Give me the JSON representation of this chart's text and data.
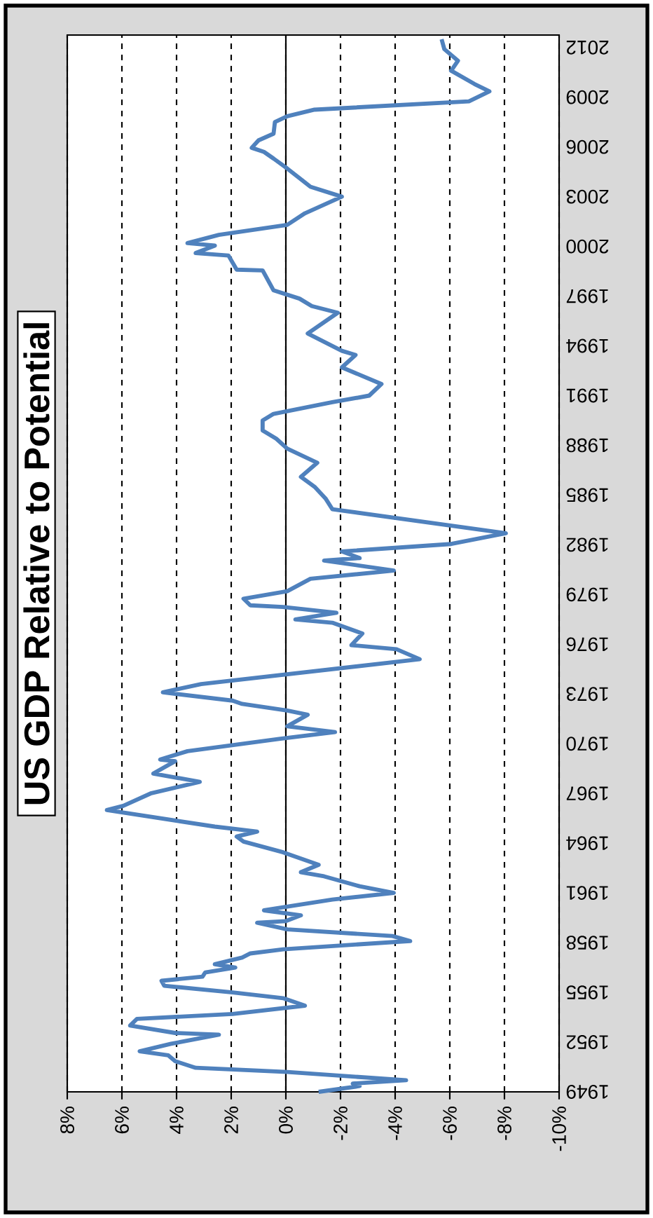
{
  "chart_data": {
    "type": "line",
    "title": "US GDP Relative to Potential",
    "color": "#4f81bd",
    "grid": "x",
    "xlim": [
      8,
      -10
    ],
    "ylim": [
      1949,
      2012.75
    ],
    "xticks": [
      {
        "value": 8,
        "label": "8%"
      },
      {
        "value": 6,
        "label": "6%"
      },
      {
        "value": 4,
        "label": "4%"
      },
      {
        "value": 2,
        "label": "2%"
      },
      {
        "value": 0,
        "label": "0%"
      },
      {
        "value": -2,
        "label": "-2%"
      },
      {
        "value": -4,
        "label": "-4%"
      },
      {
        "value": -6,
        "label": "-6%"
      },
      {
        "value": -8,
        "label": "-8%"
      },
      {
        "value": -10,
        "label": "-10%"
      }
    ],
    "yticks": [
      1949,
      1952,
      1955,
      1958,
      1961,
      1964,
      1967,
      1970,
      1973,
      1976,
      1979,
      1982,
      1985,
      1988,
      1991,
      1994,
      1997,
      2000,
      2003,
      2006,
      2009,
      2012
    ],
    "x": [
      -1.2,
      -2.7,
      -2.45,
      -4.4,
      -0.05,
      3.3,
      4.05,
      4.3,
      5.35,
      4.2,
      2.45,
      4.05,
      5.7,
      5.45,
      1.95,
      -0.7,
      0.1,
      1.95,
      4.45,
      4.55,
      3.05,
      2.95,
      1.85,
      2.6,
      1.6,
      1.3,
      0.1,
      -4.55,
      -3.9,
      -0.05,
      1.05,
      0,
      -0.55,
      0.8,
      -1.7,
      -3.95,
      -2.7,
      -1.4,
      -0.55,
      -1.2,
      0.1,
      1.55,
      1.8,
      1.05,
      2.6,
      6.55,
      5.95,
      4.95,
      3.15,
      4.85,
      4.05,
      4.6,
      3.6,
      0.2,
      -1.8,
      -0.05,
      -0.8,
      -0.05,
      1.6,
      1.95,
      4.5,
      3.1,
      -4.9,
      -4.05,
      -2.4,
      -2.8,
      -1.7,
      -0.35,
      -1.85,
      0.1,
      1.3,
      1.55,
      -0.05,
      -0.9,
      -3.95,
      -1.4,
      -2.7,
      -2.05,
      -6.05,
      -8.05,
      -1.7,
      -1.45,
      -1.05,
      -0.55,
      -1.15,
      -0.05,
      0.35,
      0.85,
      0.85,
      0.45,
      -1.7,
      -3.05,
      -3.5,
      -2.05,
      -2.55,
      -2.05,
      -0.8,
      -1.9,
      -0.95,
      -0.5,
      0.45,
      0.85,
      1.8,
      2.1,
      3.3,
      2.6,
      3.6,
      2.45,
      -0.05,
      -0.7,
      -2.05,
      -0.9,
      -0.05,
      0.45,
      0.8,
      1.25,
      1.0,
      0.45,
      0.4,
      -0.05,
      -1.05,
      -6.7,
      -7.45,
      -6.9,
      -6.05,
      -6.3,
      -5.8,
      -5.7
    ],
    "values": [
      1949.0,
      1949.35,
      1949.5,
      1949.7,
      1950.2,
      1950.45,
      1950.85,
      1951.2,
      1951.45,
      1951.9,
      1952.45,
      1952.55,
      1953.0,
      1953.4,
      1953.7,
      1954.2,
      1954.65,
      1955.0,
      1955.4,
      1955.7,
      1955.95,
      1956.2,
      1956.5,
      1956.7,
      1957.1,
      1957.35,
      1957.6,
      1958.1,
      1958.4,
      1958.8,
      1959.2,
      1959.3,
      1959.65,
      1959.95,
      1960.6,
      1961.0,
      1961.4,
      1962.0,
      1962.25,
      1962.7,
      1963.45,
      1964.1,
      1964.4,
      1964.7,
      1965.0,
      1966.0,
      1966.25,
      1967.0,
      1967.7,
      1968.2,
      1968.95,
      1969.05,
      1969.55,
      1970.3,
      1970.7,
      1971.05,
      1971.75,
      1972.0,
      1972.4,
      1972.6,
      1973.1,
      1973.6,
      1975.1,
      1975.7,
      1975.95,
      1976.65,
      1977.3,
      1977.5,
      1977.9,
      1978.25,
      1978.35,
      1978.75,
      1979.2,
      1979.95,
      1980.45,
      1981.05,
      1981.2,
      1981.6,
      1982.05,
      1982.7,
      1984.15,
      1984.8,
      1985.5,
      1986.1,
      1986.95,
      1987.8,
      1988.4,
      1988.9,
      1989.5,
      1989.9,
      1990.6,
      1991.0,
      1991.7,
      1992.7,
      1993.45,
      1993.7,
      1994.75,
      1996.0,
      1996.4,
      1996.85,
      1997.35,
      1998.55,
      1998.6,
      1999.45,
      1999.6,
      2000.05,
      2000.2,
      2000.7,
      2001.3,
      2002.0,
      2003.0,
      2003.6,
      2004.7,
      2005.3,
      2005.7,
      2005.95,
      2006.4,
      2006.8,
      2007.5,
      2007.85,
      2008.25,
      2008.75,
      2009.35,
      2009.8,
      2010.6,
      2011.2,
      2011.9,
      2012.5
    ]
  }
}
